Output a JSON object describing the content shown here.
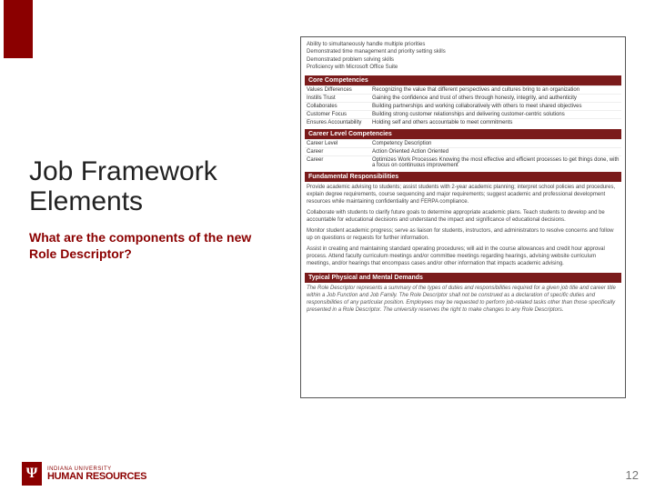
{
  "slide": {
    "title": "Job Framework Elements",
    "subtitle": "What are the components of the new Role Descriptor?",
    "page_number": "12"
  },
  "colors": {
    "brand_red": "#8b0000",
    "header_red": "#7a1b1b",
    "text": "#222222",
    "muted": "#777777",
    "border": "#555555"
  },
  "logo": {
    "top": "INDIANA UNIVERSITY",
    "bottom": "HUMAN RESOURCES",
    "mark": "Ψ"
  },
  "doc": {
    "intro_lines": [
      "Ability to simultaneously handle multiple priorities",
      "Demonstrated time management and priority setting skills",
      "Demonstrated problem solving skills",
      "Proficiency with Microsoft Office Suite"
    ],
    "sections": [
      {
        "header": "Core Competencies",
        "rows": [
          {
            "a": "Values Differences",
            "b": "Recognizing the value that different perspectives and cultures bring to an organization"
          },
          {
            "a": "Instills Trust",
            "b": "Gaining the confidence and trust of others through honesty, integrity, and authenticity"
          },
          {
            "a": "Collaborates",
            "b": "Building partnerships and working collaboratively with others to meet shared objectives"
          },
          {
            "a": "Customer Focus",
            "b": "Building strong customer relationships and delivering customer-centric solutions"
          },
          {
            "a": "Ensures Accountability",
            "b": "Holding self and others accountable to meet commitments"
          }
        ]
      },
      {
        "header": "Career Level Competencies",
        "rows": [
          {
            "a": "Career Level",
            "b": "Competency           Description"
          },
          {
            "a": "Career",
            "b": "Action Oriented       Action Oriented"
          },
          {
            "a": "Career",
            "b": "Optimizes Work Processes   Knowing the most effective and efficient processes to get things done, with a focus on continuous improvement"
          }
        ]
      },
      {
        "header": "Fundamental Responsibilities",
        "paras": [
          "Provide academic advising to students; assist students with 2-year academic planning; interpret school policies and procedures, explain degree requirements, course sequencing and major requirements; suggest academic and professional development resources while maintaining confidentiality and FERPA compliance.",
          "Collaborate with students to clarify future goals to determine appropriate academic plans. Teach students to develop and be accountable for educational decisions and understand the impact and significance of educational decisions.",
          "Monitor student academic progress; serve as liaison for students, instructors, and administrators to resolve concerns and follow up on questions or requests for further information.",
          "Assist in creating and maintaining standard operating procedures; will aid in the course allowances and credit hour approval process. Attend faculty curriculum meetings and/or committee meetings regarding hearings, advising website curriculum meetings, and/or hearings that encompass cases and/or other information that impacts academic advising."
        ]
      },
      {
        "header": "Typical Physical and Mental Demands",
        "paras_italic": [
          "The Role Descriptor represents a summary of the types of duties and responsibilities required for a given job title and career title within a Job Function and Job Family. The Role Descriptor shall not be construed as a declaration of specific duties and responsibilities of any particular position. Employees may be requested to perform job-related tasks other than those specifically presented in a Role Descriptor. The university reserves the right to make changes to any Role Descriptors."
        ]
      }
    ]
  }
}
